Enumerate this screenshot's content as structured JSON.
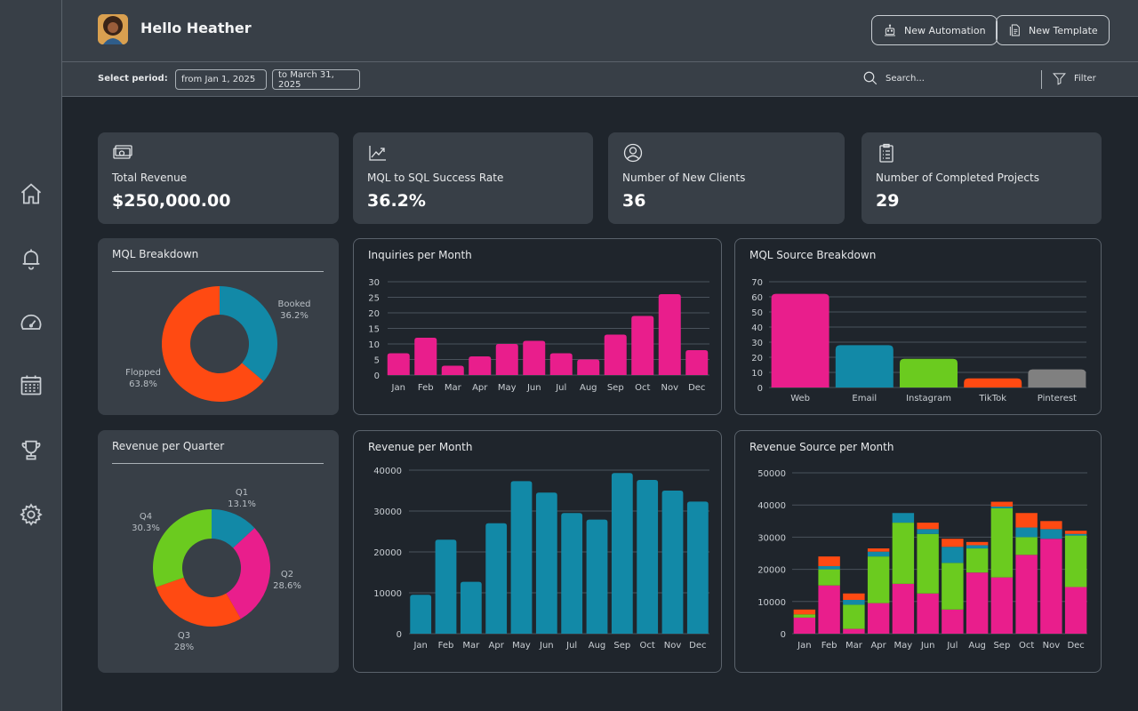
{
  "colors": {
    "pink": "#e91e8c",
    "teal": "#1289a7",
    "green": "#6bcb1f",
    "orange": "#ff4a12",
    "gray": "#808080"
  },
  "header": {
    "greeting": "Hello Heather",
    "new_automation_label": "New Automation",
    "new_template_label": "New Template"
  },
  "filter_bar": {
    "period_label": "Select period:",
    "from_date": "from Jan 1, 2025",
    "to_date": "to March 31, 2025",
    "search_placeholder": "Search...",
    "filter_label": "Filter"
  },
  "sidebar": {
    "icons": [
      "home-icon",
      "bell-icon",
      "gauge-icon",
      "calendar-icon",
      "trophy-icon",
      "gear-icon"
    ]
  },
  "kpis": [
    {
      "icon": "money-icon",
      "label": "Total Revenue",
      "value": "$250,000.00"
    },
    {
      "icon": "trend-icon",
      "label": "MQL to SQL Success Rate",
      "value": "36.2%"
    },
    {
      "icon": "user-icon",
      "label": "Number of New Clients",
      "value": "36"
    },
    {
      "icon": "clipboard-icon",
      "label": "Number of Completed Projects",
      "value": "29"
    }
  ],
  "chart_data": [
    {
      "type": "pie",
      "title": "MQL Breakdown",
      "slices": [
        {
          "name": "Booked",
          "pct_label": "36.2%",
          "value": 36.2,
          "color": "#1289a7"
        },
        {
          "name": "Flopped",
          "pct_label": "63.8%",
          "value": 63.8,
          "color": "#ff4a12"
        }
      ]
    },
    {
      "type": "bar",
      "title": "Inquiries per Month",
      "categories": [
        "Jan",
        "Feb",
        "Mar",
        "Apr",
        "May",
        "Jun",
        "Jul",
        "Aug",
        "Sep",
        "Oct",
        "Nov",
        "Dec"
      ],
      "values": [
        7,
        12,
        3,
        6,
        10,
        11,
        7,
        5,
        13,
        19,
        26,
        8
      ],
      "yticks": [
        "0",
        "5",
        "10",
        "15",
        "20",
        "25",
        "30"
      ],
      "ylim": [
        0,
        30
      ],
      "color": "#e91e8c"
    },
    {
      "type": "bar",
      "title": "MQL Source Breakdown",
      "categories": [
        "Web",
        "Email",
        "Instagram",
        "TikTok",
        "Pinterest"
      ],
      "values": [
        62,
        28,
        19,
        6,
        12
      ],
      "colors": [
        "#e91e8c",
        "#1289a7",
        "#6bcb1f",
        "#ff4a12",
        "#808080"
      ],
      "yticks": [
        "0",
        "10",
        "20",
        "30",
        "40",
        "50",
        "60",
        "70"
      ],
      "ylim": [
        0,
        70
      ]
    },
    {
      "type": "pie",
      "title": "Revenue per Quarter",
      "slices": [
        {
          "name": "Q1",
          "pct_label": "13.1%",
          "value": 13.1,
          "color": "#1289a7"
        },
        {
          "name": "Q2",
          "pct_label": "28.6%",
          "value": 28.6,
          "color": "#e91e8c"
        },
        {
          "name": "Q3",
          "pct_label": "28%",
          "value": 28,
          "color": "#ff4a12"
        },
        {
          "name": "Q4",
          "pct_label": "30.3%",
          "value": 30.3,
          "color": "#6bcb1f"
        }
      ]
    },
    {
      "type": "bar",
      "title": "Revenue per Month",
      "categories": [
        "Jan",
        "Feb",
        "Mar",
        "Apr",
        "May",
        "Jun",
        "Jul",
        "Aug",
        "Sep",
        "Oct",
        "Nov",
        "Dec"
      ],
      "values": [
        9500,
        23000,
        12700,
        27000,
        37300,
        34500,
        29500,
        27900,
        39300,
        37600,
        35000,
        32300
      ],
      "yticks": [
        "0",
        "10000",
        "20000",
        "30000",
        "40000"
      ],
      "ylim": [
        0,
        40000
      ],
      "color": "#1289a7"
    },
    {
      "type": "bar",
      "title": "Revenue Source per Month",
      "stacked": true,
      "categories": [
        "Jan",
        "Feb",
        "Mar",
        "Apr",
        "May",
        "Jun",
        "Jul",
        "Aug",
        "Sep",
        "Oct",
        "Nov",
        "Dec"
      ],
      "series": [
        {
          "name": "Web",
          "color": "#e91e8c",
          "values": [
            5000,
            15000,
            1500,
            9500,
            15500,
            12500,
            7500,
            19000,
            17500,
            24500,
            29500,
            14500
          ]
        },
        {
          "name": "Instagram",
          "color": "#6bcb1f",
          "values": [
            1000,
            5000,
            7500,
            14500,
            19000,
            18500,
            14500,
            7500,
            21500,
            5500,
            0,
            16000
          ]
        },
        {
          "name": "Email",
          "color": "#1289a7",
          "values": [
            0,
            1000,
            1500,
            1500,
            3000,
            1500,
            5000,
            1000,
            500,
            3000,
            3000,
            500
          ]
        },
        {
          "name": "TikTok",
          "color": "#ff4a12",
          "values": [
            1500,
            3000,
            2000,
            1000,
            0,
            2000,
            2500,
            1000,
            1500,
            4500,
            2500,
            1000
          ]
        }
      ],
      "yticks": [
        "0",
        "10000",
        "20000",
        "30000",
        "40000",
        "50000"
      ],
      "ylim": [
        0,
        50000
      ]
    }
  ]
}
